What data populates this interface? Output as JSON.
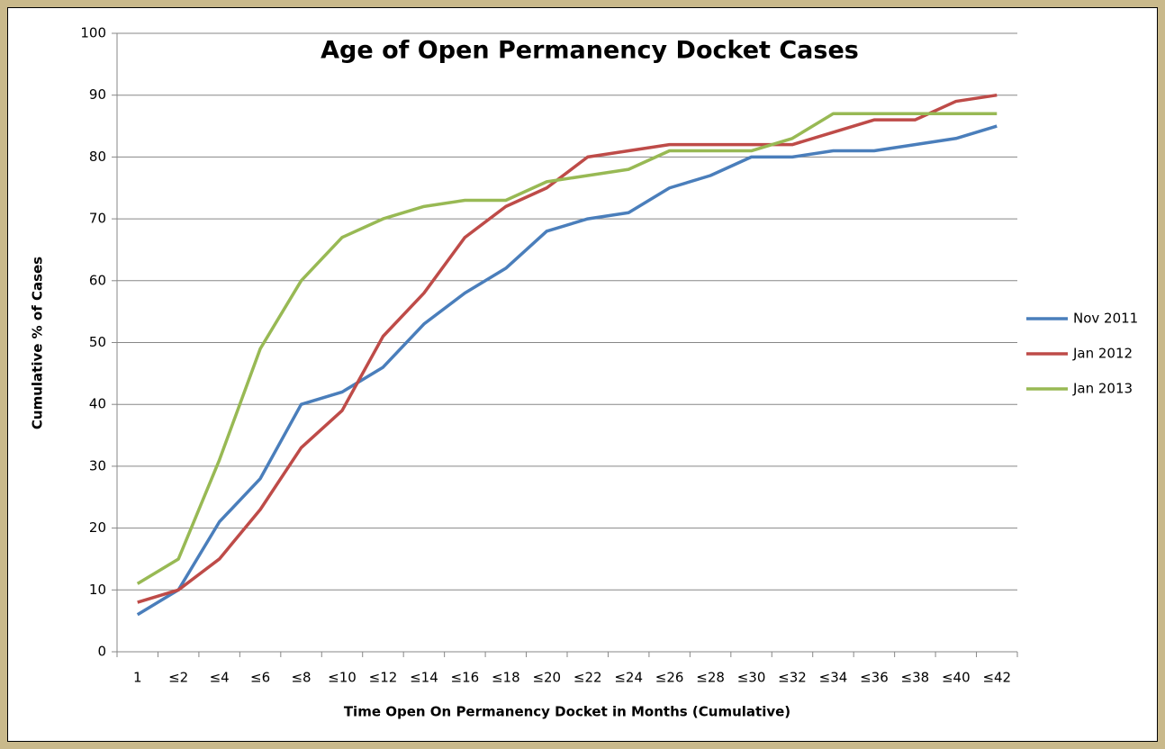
{
  "chart_data": {
    "type": "line",
    "title": "Age of Open Permanency Docket Cases",
    "x_label": "Time Open On Permanency Docket in Months (Cumulative)",
    "y_label": "Cumulative % of Cases",
    "categories": [
      "1",
      "≤2",
      "≤4",
      "≤6",
      "≤8",
      "≤10",
      "≤12",
      "≤14",
      "≤16",
      "≤18",
      "≤20",
      "≤22",
      "≤24",
      "≤26",
      "≤28",
      "≤30",
      "≤32",
      "≤34",
      "≤36",
      "≤38",
      "≤40",
      "≤42"
    ],
    "series": [
      {
        "name": "Nov 2011",
        "color": "#4a7ebb",
        "values": [
          6,
          10,
          21,
          28,
          40,
          42,
          46,
          53,
          58,
          62,
          68,
          70,
          71,
          75,
          77,
          80,
          80,
          81,
          81,
          82,
          83,
          85
        ]
      },
      {
        "name": "Jan 2012",
        "color": "#be4b48",
        "values": [
          8,
          10,
          15,
          23,
          33,
          39,
          51,
          58,
          67,
          72,
          75,
          80,
          81,
          82,
          82,
          82,
          82,
          84,
          86,
          86,
          89,
          90
        ]
      },
      {
        "name": "Jan 2013",
        "color": "#98b954",
        "values": [
          11,
          15,
          31,
          49,
          60,
          67,
          70,
          72,
          73,
          73,
          76,
          77,
          78,
          81,
          81,
          81,
          83,
          87,
          87,
          87,
          87,
          87
        ]
      }
    ],
    "ylim": [
      0,
      100
    ],
    "yticks": [
      0,
      10,
      20,
      30,
      40,
      50,
      60,
      70,
      80,
      90,
      100
    ],
    "grid": true,
    "legend": "right"
  }
}
